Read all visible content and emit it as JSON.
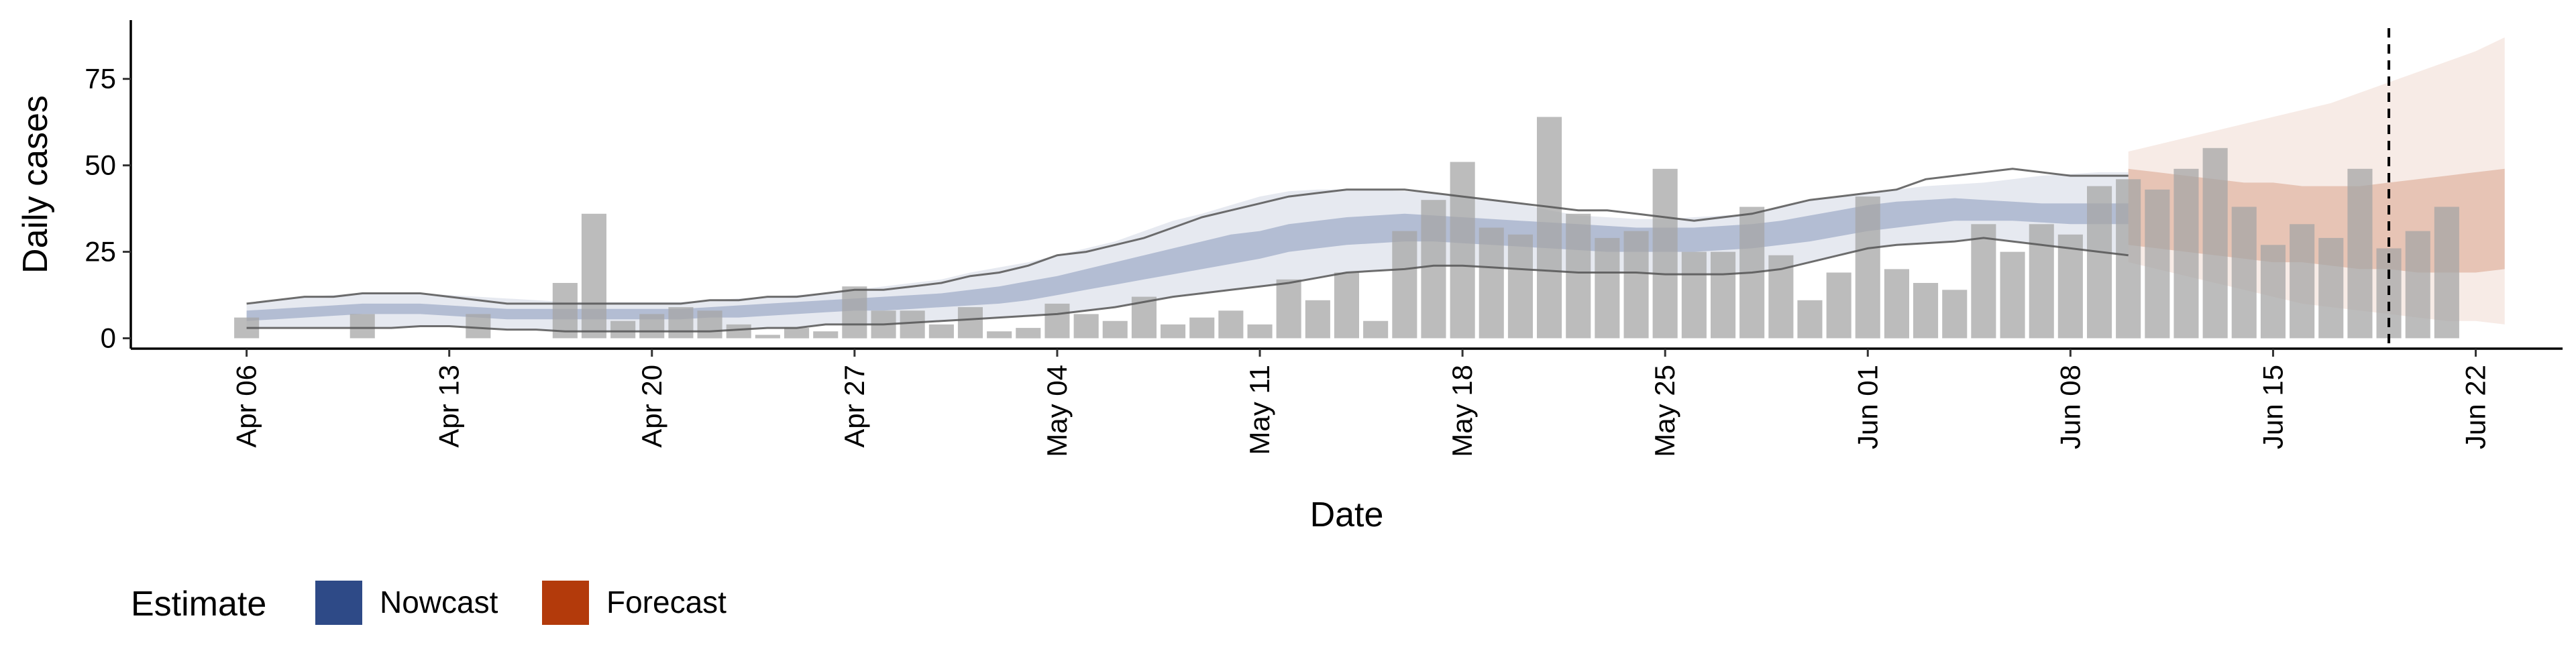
{
  "chart_data": {
    "type": "bar",
    "xlabel": "Date",
    "ylabel": "Daily cases",
    "x_range": [
      "2020-04-02",
      "2020-06-25"
    ],
    "ylim": [
      -3,
      92
    ],
    "x_ticks": [
      {
        "date": "2020-04-06",
        "label": "Apr 06"
      },
      {
        "date": "2020-04-13",
        "label": "Apr 13"
      },
      {
        "date": "2020-04-20",
        "label": "Apr 20"
      },
      {
        "date": "2020-04-27",
        "label": "Apr 27"
      },
      {
        "date": "2020-05-04",
        "label": "May 04"
      },
      {
        "date": "2020-05-11",
        "label": "May 11"
      },
      {
        "date": "2020-05-18",
        "label": "May 18"
      },
      {
        "date": "2020-05-25",
        "label": "May 25"
      },
      {
        "date": "2020-06-01",
        "label": "Jun 01"
      },
      {
        "date": "2020-06-08",
        "label": "Jun 08"
      },
      {
        "date": "2020-06-15",
        "label": "Jun 15"
      },
      {
        "date": "2020-06-22",
        "label": "Jun 22"
      }
    ],
    "y_ticks": [
      0,
      25,
      50,
      75
    ],
    "grid": false,
    "reference_line": {
      "date": "2020-06-19",
      "style": "dashed"
    },
    "legend": {
      "position": "bottom-left",
      "title": "Estimate",
      "items": [
        {
          "label": "Nowcast",
          "color": "#2E4A87"
        },
        {
          "label": "Forecast",
          "color": "#B33A0B"
        }
      ]
    },
    "bars": {
      "color": "#A6A6A6",
      "start_date": "2020-04-06",
      "values": [
        6,
        0,
        0,
        0,
        7,
        0,
        0,
        0,
        7,
        0,
        0,
        16,
        36,
        5,
        7,
        9,
        8,
        4,
        1,
        3,
        2,
        15,
        8,
        8,
        4,
        9,
        2,
        3,
        10,
        7,
        5,
        12,
        4,
        6,
        8,
        4,
        17,
        11,
        19,
        5,
        31,
        40,
        51,
        32,
        30,
        64,
        36,
        29,
        31,
        49,
        25,
        25,
        38,
        24,
        11,
        19,
        41,
        20,
        16,
        14,
        33,
        25,
        33,
        30,
        44,
        46,
        43,
        49,
        55,
        38,
        27,
        33,
        29,
        49,
        26,
        31,
        38
      ]
    },
    "nowcast": {
      "start_date": "2020-04-06",
      "median_low": [
        5,
        5.5,
        6,
        6.5,
        7,
        7,
        7,
        6.5,
        6,
        5.5,
        5.5,
        5.5,
        5.5,
        5.5,
        5.5,
        5.5,
        6,
        6,
        6.5,
        7,
        7.5,
        8,
        8,
        8.5,
        9,
        9.5,
        10,
        11,
        12.5,
        14,
        15.5,
        17,
        18.5,
        20,
        21.5,
        23,
        25,
        26,
        27,
        27.5,
        28,
        28,
        27.5,
        27,
        26.5,
        26,
        25.5,
        25,
        25,
        25,
        25,
        25.5,
        26,
        27,
        28,
        29.5,
        31,
        32,
        33,
        34,
        34,
        34,
        33.5,
        33,
        33,
        33
      ],
      "median_high": [
        8,
        8.5,
        9,
        9.5,
        10,
        10,
        10,
        9.5,
        9,
        8.5,
        8.5,
        8.5,
        8.5,
        8.5,
        8.5,
        8.5,
        9,
        9.5,
        10,
        10.5,
        11,
        11.5,
        12,
        12.5,
        13,
        14,
        15,
        16.5,
        18,
        20,
        22,
        24,
        26,
        28,
        30,
        31,
        33,
        34,
        35,
        35.5,
        36,
        35.5,
        35,
        34.5,
        34,
        33.5,
        33,
        32.5,
        32,
        32,
        32,
        32.5,
        33,
        34,
        35.5,
        37,
        38.5,
        39.5,
        40,
        40.5,
        40,
        39.5,
        39,
        39,
        39,
        39
      ],
      "ci_low": [
        3,
        3,
        3,
        3,
        3,
        3,
        3.5,
        3.5,
        3,
        2.5,
        2.5,
        2,
        2,
        2,
        2,
        2,
        2,
        2.5,
        3,
        3,
        4,
        4,
        4,
        4.5,
        5,
        5.5,
        6,
        6.5,
        7,
        8,
        9,
        10.5,
        12,
        13,
        14,
        15,
        16,
        17.5,
        19,
        19.5,
        20,
        21,
        21,
        20.5,
        20,
        19.5,
        19,
        19,
        19,
        18.5,
        18.5,
        18.5,
        19,
        20,
        22,
        24,
        26,
        27,
        27.5,
        28,
        29,
        28,
        27,
        26,
        25,
        24
      ],
      "ci_high": [
        10,
        11,
        12,
        12.5,
        13,
        13,
        13,
        12.5,
        12,
        11.5,
        11,
        10.5,
        10.5,
        10.5,
        10.5,
        10.5,
        11,
        11.5,
        12,
        12.5,
        13,
        14,
        15,
        16,
        17,
        19,
        20.5,
        22,
        24,
        26,
        28,
        31,
        34,
        36,
        38.5,
        41,
        42.5,
        43,
        43,
        43,
        42.5,
        42,
        41,
        40,
        39,
        37,
        35.5,
        35,
        34.5,
        34.5,
        35,
        35.5,
        36,
        38,
        40,
        41,
        42,
        43,
        44,
        44.5,
        45,
        46,
        47,
        47.5,
        48,
        48
      ]
    },
    "forecast": {
      "start_date": "2020-06-10",
      "median_low": [
        27,
        26,
        25,
        24,
        23,
        22,
        22,
        21,
        20,
        20,
        19,
        19,
        19,
        20
      ],
      "median_high": [
        49,
        48,
        47,
        46,
        45,
        45,
        44,
        44,
        44,
        45,
        46,
        47,
        48,
        49
      ],
      "ci_low": [
        22,
        20,
        18,
        16,
        14,
        12,
        10,
        9,
        8,
        7,
        6,
        5,
        5,
        4
      ],
      "ci_high": [
        54,
        56,
        58,
        60,
        62,
        64,
        66,
        68,
        71,
        74,
        77,
        80,
        83,
        87
      ]
    },
    "smooth_lines": {
      "color": "#555555",
      "start_date": "2020-04-06",
      "upper": [
        10,
        11,
        12,
        12,
        13,
        13,
        13,
        12,
        11,
        10,
        10,
        10,
        10,
        10,
        10,
        10,
        11,
        11,
        12,
        12,
        13,
        14,
        14,
        15,
        16,
        18,
        19,
        21,
        24,
        25,
        27,
        29,
        32,
        35,
        37,
        39,
        41,
        42,
        43,
        43,
        43,
        42,
        41,
        40,
        39,
        38,
        37,
        37,
        36,
        35,
        34,
        35,
        36,
        38,
        40,
        41,
        42,
        43,
        46,
        47,
        48,
        49,
        48,
        47,
        47,
        47
      ],
      "lower": [
        3,
        3,
        3,
        3,
        3,
        3,
        3.5,
        3.5,
        3,
        2.5,
        2.5,
        2,
        2,
        2,
        2,
        2,
        2,
        2.5,
        3,
        3,
        4,
        4,
        4,
        4.5,
        5,
        5.5,
        6,
        6.5,
        7,
        8,
        9,
        10.5,
        12,
        13,
        14,
        15,
        16,
        17.5,
        19,
        19.5,
        20,
        21,
        21,
        20.5,
        20,
        19.5,
        19,
        19,
        19,
        18.5,
        18.5,
        18.5,
        19,
        20,
        22,
        24,
        26,
        27,
        27.5,
        28,
        29,
        28,
        27,
        26,
        25,
        24
      ]
    }
  }
}
